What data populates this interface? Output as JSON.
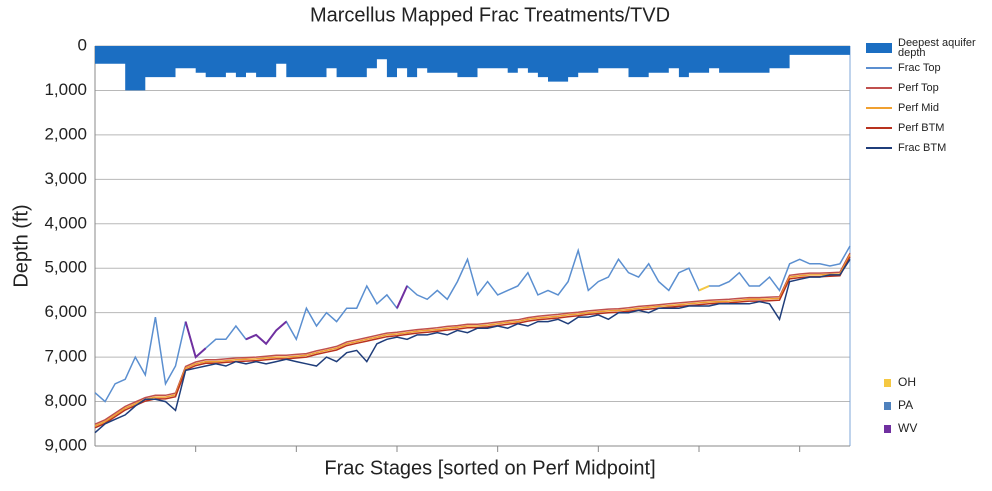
{
  "chart_data": {
    "type": "line",
    "title": "Marcellus Mapped Frac Treatments/TVD",
    "x_label": "Frac Stages [sorted on Perf Midpoint]",
    "y_label": "Depth (ft)",
    "xlim": [
      0,
      75
    ],
    "xticks": [
      10,
      20,
      30,
      40,
      50,
      60,
      70
    ],
    "ylim": [
      0,
      9000
    ],
    "y_inverted": true,
    "grid": true,
    "legend": "right",
    "yticks": [
      0,
      {
        "value": 1000,
        "label": "1,000"
      },
      {
        "value": 2000,
        "label": "2,000"
      },
      {
        "value": 3000,
        "label": "3,000"
      },
      {
        "value": 4000,
        "label": "4,000"
      },
      {
        "value": 5000,
        "label": "5,000"
      },
      {
        "value": 6000,
        "label": "6,000"
      },
      {
        "value": 7000,
        "label": "7,000"
      },
      {
        "value": 8000,
        "label": "8,000"
      },
      {
        "value": 9000,
        "label": "9,000"
      }
    ],
    "x": [
      0,
      1,
      2,
      3,
      4,
      5,
      6,
      7,
      8,
      9,
      10,
      11,
      12,
      13,
      14,
      15,
      16,
      17,
      18,
      19,
      20,
      21,
      22,
      23,
      24,
      25,
      26,
      27,
      28,
      29,
      30,
      31,
      32,
      33,
      34,
      35,
      36,
      37,
      38,
      39,
      40,
      41,
      42,
      43,
      44,
      45,
      46,
      47,
      48,
      49,
      50,
      51,
      52,
      53,
      54,
      55,
      56,
      57,
      58,
      59,
      60,
      61,
      62,
      63,
      64,
      65,
      66,
      67,
      68,
      69,
      70,
      71,
      72,
      73,
      74,
      75
    ],
    "series": [
      {
        "name": "Deepest aquifer depth",
        "color": "#1b6ec2",
        "style": "area",
        "values": [
          400,
          400,
          400,
          1000,
          1000,
          700,
          700,
          700,
          500,
          500,
          600,
          700,
          700,
          600,
          700,
          600,
          700,
          700,
          400,
          700,
          700,
          700,
          700,
          500,
          700,
          700,
          700,
          500,
          300,
          700,
          500,
          700,
          500,
          600,
          600,
          600,
          700,
          700,
          500,
          500,
          500,
          600,
          500,
          600,
          700,
          800,
          800,
          700,
          600,
          600,
          500,
          500,
          500,
          700,
          700,
          600,
          600,
          500,
          700,
          600,
          600,
          500,
          600,
          600,
          600,
          600,
          600,
          500,
          500,
          200,
          200,
          200,
          200,
          200,
          200,
          200
        ]
      },
      {
        "name": "Frac Top",
        "color": "#5b8fd0",
        "style": "line",
        "values": [
          7800,
          8000,
          7600,
          7500,
          7000,
          7400,
          6100,
          7600,
          7200,
          6200,
          7000,
          6800,
          6600,
          6600,
          6300,
          6600,
          6500,
          6700,
          6400,
          6200,
          6600,
          5900,
          6300,
          6000,
          6200,
          5900,
          5900,
          5400,
          5800,
          5600,
          5900,
          5400,
          5600,
          5700,
          5500,
          5700,
          5300,
          4800,
          5600,
          5300,
          5600,
          5500,
          5400,
          5100,
          5600,
          5500,
          5600,
          5300,
          4600,
          5500,
          5300,
          5200,
          4800,
          5100,
          5200,
          4900,
          5300,
          5500,
          5100,
          5000,
          5500,
          5400,
          5400,
          5300,
          5100,
          5400,
          5400,
          5200,
          5500,
          4900,
          4800,
          4900,
          4900,
          4950,
          4900,
          4500
        ]
      },
      {
        "name": "Perf Top",
        "color": "#c0504d",
        "style": "line",
        "values": [
          8510,
          8410,
          8260,
          8110,
          8010,
          7910,
          7860,
          7860,
          7810,
          7210,
          7110,
          7060,
          7060,
          7040,
          7020,
          7010,
          7000,
          6980,
          6960,
          6960,
          6940,
          6920,
          6860,
          6810,
          6760,
          6660,
          6610,
          6560,
          6510,
          6460,
          6440,
          6410,
          6380,
          6360,
          6340,
          6310,
          6290,
          6260,
          6260,
          6240,
          6210,
          6180,
          6160,
          6110,
          6080,
          6060,
          6040,
          6010,
          5990,
          5960,
          5940,
          5920,
          5910,
          5890,
          5860,
          5840,
          5820,
          5800,
          5780,
          5760,
          5740,
          5720,
          5710,
          5700,
          5680,
          5660,
          5660,
          5650,
          5640,
          5160,
          5130,
          5110,
          5110,
          5100,
          5090,
          4660
        ]
      },
      {
        "name": "Perf Mid",
        "color": "#f0a030",
        "style": "line",
        "values": [
          8550,
          8450,
          8300,
          8150,
          8050,
          7950,
          7900,
          7900,
          7850,
          7250,
          7150,
          7100,
          7100,
          7080,
          7060,
          7050,
          7040,
          7020,
          7000,
          7000,
          6980,
          6960,
          6900,
          6850,
          6800,
          6700,
          6650,
          6600,
          6550,
          6500,
          6480,
          6450,
          6420,
          6400,
          6380,
          6350,
          6330,
          6300,
          6300,
          6280,
          6250,
          6220,
          6200,
          6150,
          6120,
          6100,
          6080,
          6050,
          6030,
          6000,
          5980,
          5960,
          5950,
          5930,
          5900,
          5880,
          5860,
          5840,
          5820,
          5800,
          5780,
          5760,
          5750,
          5740,
          5720,
          5700,
          5700,
          5690,
          5680,
          5200,
          5170,
          5150,
          5150,
          5140,
          5130,
          4700
        ]
      },
      {
        "name": "Perf BTM",
        "color": "#b8321e",
        "style": "line",
        "values": [
          8590,
          8490,
          8340,
          8190,
          8090,
          7990,
          7940,
          7940,
          7890,
          7290,
          7190,
          7140,
          7140,
          7120,
          7100,
          7090,
          7080,
          7060,
          7040,
          7040,
          7020,
          7000,
          6940,
          6890,
          6840,
          6740,
          6690,
          6640,
          6590,
          6540,
          6520,
          6490,
          6460,
          6440,
          6420,
          6390,
          6370,
          6340,
          6340,
          6320,
          6290,
          6260,
          6240,
          6190,
          6160,
          6140,
          6120,
          6090,
          6070,
          6040,
          6020,
          6000,
          5990,
          5970,
          5940,
          5920,
          5900,
          5880,
          5860,
          5840,
          5820,
          5800,
          5790,
          5780,
          5760,
          5740,
          5740,
          5730,
          5720,
          5240,
          5210,
          5190,
          5190,
          5180,
          5170,
          4740
        ]
      },
      {
        "name": "Frac BTM",
        "color": "#1f3d7a",
        "style": "line",
        "values": [
          8700,
          8500,
          8400,
          8300,
          8100,
          7950,
          7950,
          8000,
          8200,
          7300,
          7250,
          7200,
          7150,
          7200,
          7100,
          7150,
          7100,
          7150,
          7100,
          7050,
          7100,
          7150,
          7200,
          7000,
          7100,
          6900,
          6850,
          7100,
          6700,
          6600,
          6550,
          6600,
          6500,
          6500,
          6450,
          6500,
          6400,
          6450,
          6350,
          6350,
          6300,
          6350,
          6250,
          6300,
          6200,
          6200,
          6150,
          6250,
          6100,
          6100,
          6050,
          6150,
          6000,
          6000,
          5950,
          6000,
          5900,
          5900,
          5900,
          5850,
          5850,
          5850,
          5800,
          5800,
          5800,
          5800,
          5750,
          5800,
          6150,
          5300,
          5250,
          5200,
          5200,
          5150,
          5150,
          4800
        ]
      }
    ],
    "states": [
      {
        "name": "OH",
        "color": "#f5c842",
        "values": [
          null,
          null,
          null,
          null,
          null,
          null,
          null,
          null,
          null,
          null,
          null,
          null,
          null,
          null,
          null,
          null,
          null,
          null,
          null,
          null,
          null,
          null,
          null,
          null,
          null,
          null,
          null,
          null,
          null,
          null,
          null,
          null,
          null,
          null,
          null,
          null,
          null,
          null,
          null,
          null,
          null,
          null,
          null,
          null,
          null,
          null,
          null,
          null,
          null,
          null,
          null,
          null,
          null,
          null,
          null,
          null,
          null,
          null,
          null,
          null,
          5500,
          5400,
          null,
          null,
          null,
          null,
          null,
          null,
          null,
          null,
          null,
          null,
          null,
          null,
          null,
          null
        ]
      },
      {
        "name": "PA",
        "color": "#4f81bd"
      },
      {
        "name": "WV",
        "color": "#7030a0",
        "values": [
          null,
          null,
          null,
          null,
          null,
          null,
          null,
          null,
          null,
          6200,
          7000,
          6800,
          null,
          null,
          null,
          6600,
          6500,
          6700,
          6400,
          6200,
          null,
          null,
          null,
          null,
          null,
          null,
          null,
          null,
          null,
          null,
          5900,
          5400,
          null,
          null,
          null,
          null,
          null,
          null,
          null,
          null,
          null,
          null,
          null,
          null,
          null,
          null,
          null,
          null,
          null,
          null,
          null,
          null,
          null,
          null,
          null,
          null,
          null,
          null,
          null,
          null,
          null,
          null,
          null,
          null,
          null,
          null,
          null,
          null,
          null,
          null,
          null,
          null,
          null,
          null,
          null,
          null
        ]
      }
    ]
  }
}
